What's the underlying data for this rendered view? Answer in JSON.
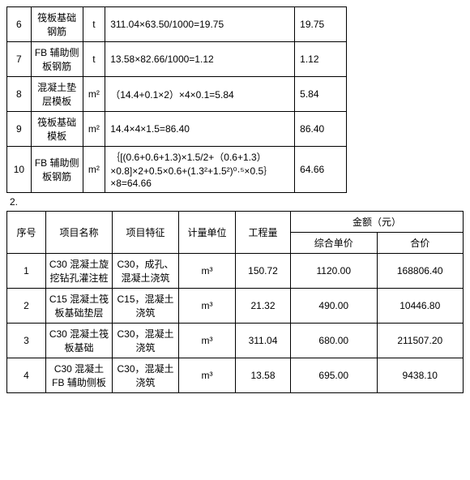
{
  "table1": {
    "rows": [
      {
        "no": "6",
        "name": "筏板基础钢筋",
        "unit": "t",
        "calc": "311.04×63.50/1000=19.75",
        "qty": "19.75"
      },
      {
        "no": "7",
        "name": "FB 辅助侧板钢筋",
        "unit": "t",
        "calc": "13.58×82.66/1000=1.12",
        "qty": "1.12"
      },
      {
        "no": "8",
        "name": "混凝土垫层模板",
        "unit": "m²",
        "calc": "（14.4+0.1×2）×4×0.1=5.84",
        "qty": "5.84"
      },
      {
        "no": "9",
        "name": "筏板基础模板",
        "unit": "m²",
        "calc": "14.4×4×1.5=86.40",
        "qty": "86.40"
      },
      {
        "no": "10",
        "name": "FB 辅助侧板钢筋",
        "unit": "m²",
        "calc": "｛[(0.6+0.6+1.3)×1.5/2+（0.6+1.3）×0.8]×2+0.5×0.6+(1.3²+1.5²)⁰·⁵×0.5｝×8=64.66",
        "qty": "64.66"
      }
    ]
  },
  "sectionLabel": "2.",
  "table2": {
    "headers": {
      "no": "序号",
      "name": "项目名称",
      "spec": "项目特征",
      "unit": "计量单位",
      "qty": "工程量",
      "amountGroup": "金额（元）",
      "price": "综合单价",
      "total": "合价"
    },
    "rows": [
      {
        "no": "1",
        "name": "C30 混凝土旋挖钻孔灌注桩",
        "spec": "C30，成孔、混凝土浇筑",
        "unit": "m³",
        "qty": "150.72",
        "price": "1120.00",
        "total": "168806.40"
      },
      {
        "no": "2",
        "name": "C15 混凝土筏板基础垫层",
        "spec": "C15，混凝土浇筑",
        "unit": "m³",
        "qty": "21.32",
        "price": "490.00",
        "total": "10446.80"
      },
      {
        "no": "3",
        "name": "C30 混凝土筏板基础",
        "spec": "C30，混凝土浇筑",
        "unit": "m³",
        "qty": "311.04",
        "price": "680.00",
        "total": "211507.20"
      },
      {
        "no": "4",
        "name": "C30 混凝土FB 辅助侧板",
        "spec": "C30，混凝土浇筑",
        "unit": "m³",
        "qty": "13.58",
        "price": "695.00",
        "total": "9438.10"
      }
    ]
  }
}
